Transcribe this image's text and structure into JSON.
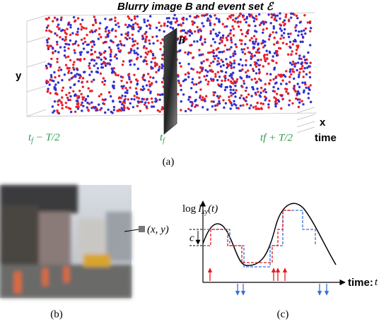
{
  "panel_a": {
    "title": "Blurry image B and event set ℰ",
    "axis_y": "y",
    "axis_x": "x",
    "axis_time": "time",
    "image_label": "B",
    "t_start": {
      "base": "t",
      "sub": "f",
      "rest": " − T/2"
    },
    "t_mid": {
      "base": "t",
      "sub": "f"
    },
    "t_end": "tf + T/2",
    "caption": "(a)"
  },
  "panel_b": {
    "pixel_label": "(x, y)",
    "caption": "(b)"
  },
  "panel_c": {
    "y_label": {
      "log": "log",
      "I": "I",
      "sub": "xy",
      "arg": "(t)"
    },
    "threshold": "c",
    "x_label": {
      "text": "time:",
      "var": "t"
    },
    "caption": "(c)"
  }
}
